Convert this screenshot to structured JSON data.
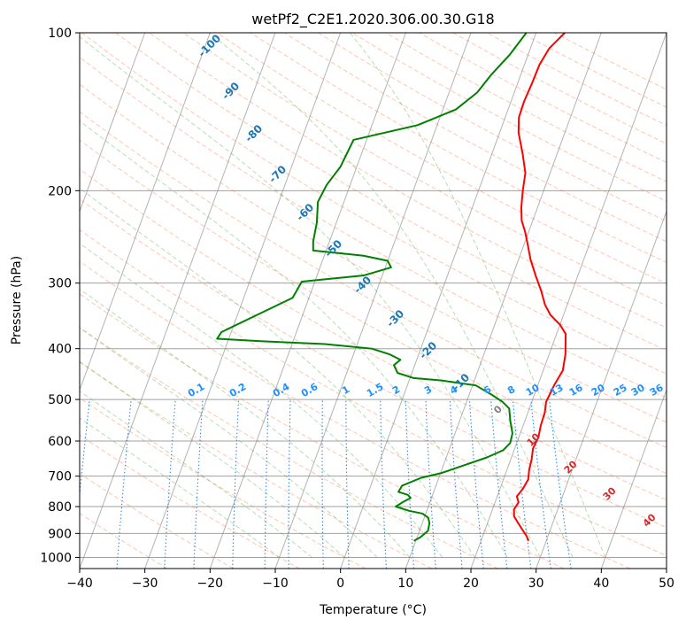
{
  "chart_data": {
    "type": "line",
    "title": "wetPf2_C2E1.2020.306.00.30.G18",
    "xlabel": "Temperature (°C)",
    "ylabel": "Pressure (hPa)",
    "xlim": [
      -40,
      50
    ],
    "ylim": [
      1050,
      100
    ],
    "y_scale": "log",
    "grid": true,
    "x_ticks": [
      "−40",
      "−30",
      "−20",
      "−10",
      "0",
      "10",
      "20",
      "30",
      "40",
      "50"
    ],
    "y_ticks": [
      "100",
      "200",
      "300",
      "400",
      "500",
      "600",
      "700",
      "800",
      "900",
      "1000"
    ],
    "series": [
      {
        "color": "#ff0000",
        "style": "temperature",
        "points": [
          [
            27.3,
            930
          ],
          [
            26.7,
            910
          ],
          [
            25.5,
            880
          ],
          [
            24.5,
            855
          ],
          [
            23.7,
            835
          ],
          [
            23.3,
            810
          ],
          [
            23.6,
            785
          ],
          [
            23.0,
            765
          ],
          [
            23.5,
            740
          ],
          [
            23.8,
            710
          ],
          [
            23.4,
            680
          ],
          [
            23.2,
            650
          ],
          [
            22.8,
            620
          ],
          [
            23.0,
            590
          ],
          [
            22.7,
            560
          ],
          [
            22.6,
            530
          ],
          [
            22.2,
            505
          ],
          [
            22.5,
            470
          ],
          [
            23.0,
            440
          ],
          [
            22.5,
            410
          ],
          [
            21.4,
            375
          ],
          [
            20.0,
            360
          ],
          [
            18.0,
            345
          ],
          [
            16.6,
            330
          ],
          [
            15.2,
            310
          ],
          [
            13.5,
            290
          ],
          [
            11.8,
            270
          ],
          [
            10.7,
            255
          ],
          [
            9.5,
            240
          ],
          [
            8.3,
            228
          ],
          [
            7.5,
            215
          ],
          [
            6.8,
            200
          ],
          [
            6.2,
            185
          ],
          [
            4.7,
            170
          ],
          [
            2.9,
            155
          ],
          [
            2.1,
            145
          ],
          [
            2.0,
            135
          ],
          [
            2.2,
            125
          ],
          [
            2.3,
            115
          ],
          [
            2.9,
            107
          ],
          [
            4.4,
            100
          ]
        ]
      },
      {
        "color": "#008000",
        "style": "dewpoint",
        "points": [
          [
            9.7,
            930
          ],
          [
            10.5,
            915
          ],
          [
            11.3,
            890
          ],
          [
            11.1,
            860
          ],
          [
            10.6,
            840
          ],
          [
            9.5,
            825
          ],
          [
            7.3,
            815
          ],
          [
            5.0,
            800
          ],
          [
            5.8,
            785
          ],
          [
            6.8,
            770
          ],
          [
            6.2,
            760
          ],
          [
            4.6,
            750
          ],
          [
            4.8,
            730
          ],
          [
            7.3,
            705
          ],
          [
            10.2,
            690
          ],
          [
            13.5,
            665
          ],
          [
            16.2,
            645
          ],
          [
            18.3,
            625
          ],
          [
            19.0,
            605
          ],
          [
            18.8,
            580
          ],
          [
            17.8,
            550
          ],
          [
            16.9,
            520
          ],
          [
            15.5,
            505
          ],
          [
            13.5,
            490
          ],
          [
            10.5,
            470
          ],
          [
            5.0,
            460
          ],
          [
            0.5,
            455
          ],
          [
            -2.2,
            445
          ],
          [
            -3.2,
            430
          ],
          [
            -2.5,
            420
          ],
          [
            -4.5,
            410
          ],
          [
            -7.5,
            400
          ],
          [
            -15.0,
            392
          ],
          [
            -25.0,
            387
          ],
          [
            -31.8,
            383
          ],
          [
            -31.5,
            372
          ],
          [
            -27.0,
            345
          ],
          [
            -22.5,
            320
          ],
          [
            -22.0,
            298
          ],
          [
            -12.8,
            290
          ],
          [
            -9.1,
            280
          ],
          [
            -10.0,
            272
          ],
          [
            -14.0,
            266
          ],
          [
            -22.0,
            260
          ],
          [
            -22.5,
            250
          ],
          [
            -23.0,
            230
          ],
          [
            -24.0,
            210
          ],
          [
            -23.6,
            195
          ],
          [
            -22.5,
            180
          ],
          [
            -22.0,
            160
          ],
          [
            -13.0,
            150
          ],
          [
            -8.0,
            140
          ],
          [
            -5.7,
            130
          ],
          [
            -4.5,
            120
          ],
          [
            -2.8,
            110
          ],
          [
            -1.5,
            100
          ]
        ]
      }
    ],
    "dry_adiabat_labels": [
      "-100",
      "-90",
      "-80",
      "-70",
      "-60",
      "-50",
      "-40",
      "-30",
      "-20",
      "-10"
    ],
    "mixing_ratio_labels": [
      "0.1",
      "0.2",
      "0.4",
      "0.6",
      "1",
      "1.5",
      "2",
      "3",
      "4",
      "6",
      "8",
      "10",
      "13",
      "16",
      "20",
      "25",
      "30",
      "36"
    ],
    "isotherm_labels": [
      "0",
      "10",
      "20",
      "30",
      "40"
    ],
    "colors": {
      "temperature": "#ff0000",
      "dewpoint": "#008000",
      "dry_adiabat_label": "#1f77b4",
      "mixing_ratio": "#1e90ff",
      "moist_adiabat": "#2ca02c",
      "isotherm_label": "#d62728",
      "dry_adiabat_line": "#ff7f50",
      "isobar": "#808080",
      "skew_isotherm": "#808080"
    }
  }
}
